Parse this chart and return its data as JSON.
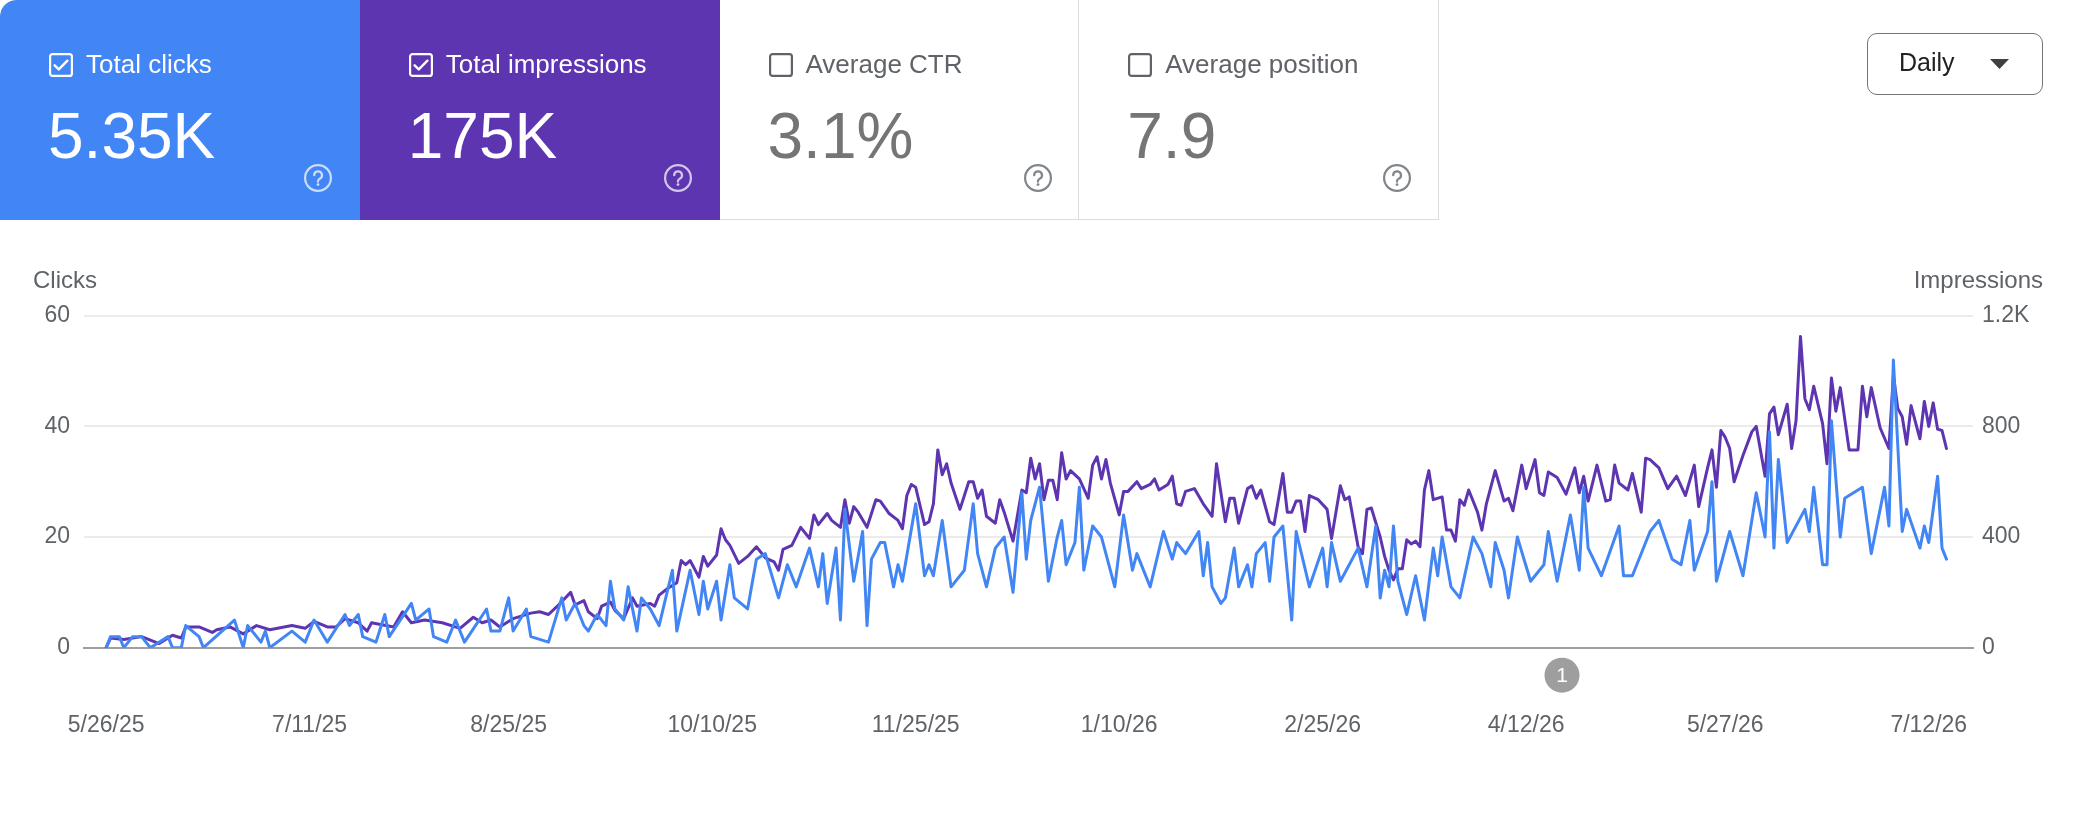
{
  "chart_data": [
    {
      "type": "other",
      "categories": [
        "Total clicks",
        "Total impressions",
        "Average CTR",
        "Average position"
      ],
      "value_labels": [
        "5.35K",
        "175K",
        "3.1%",
        "7.9"
      ],
      "colors": [
        "#4285f4",
        "#5e35b1",
        null,
        null
      ],
      "annotations": [
        "Daily"
      ]
    },
    {
      "type": "line",
      "ylabel": "Clicks",
      "y2label": "Impressions",
      "xlim": [
        "2025-05-21",
        "2026-07-22"
      ],
      "xticks": [
        {
          "value": "2025-05-26",
          "label": "5/26/25"
        },
        {
          "value": "2025-07-11",
          "label": "7/11/25"
        },
        {
          "value": "2025-08-25",
          "label": "8/25/25"
        },
        {
          "value": "2025-10-10",
          "label": "10/10/25"
        },
        {
          "value": "2025-11-25",
          "label": "11/25/25"
        },
        {
          "value": "2026-01-10",
          "label": "1/10/26"
        },
        {
          "value": "2026-02-25",
          "label": "2/25/26"
        },
        {
          "value": "2026-04-12",
          "label": "4/12/26"
        },
        {
          "value": "2026-05-27",
          "label": "5/27/26"
        },
        {
          "value": "2026-07-12",
          "label": "7/12/26"
        }
      ],
      "ylim": [
        0,
        60
      ],
      "yticks": [
        0,
        20,
        40,
        60
      ],
      "y2lim": [
        0,
        1200
      ],
      "y2ticks": [
        0,
        400,
        800,
        {
          "value": 1200,
          "label": "1.2K"
        }
      ],
      "grid": "y",
      "annotations": [
        "1"
      ],
      "series": [
        {
          "color": "#4285f4",
          "x": [
            "2025-05-26",
            "2025-05-27",
            "2025-05-29",
            "2025-05-30",
            "2025-06-01",
            "2025-06-03",
            "2025-06-05",
            "2025-06-09",
            "2025-06-10",
            "2025-06-12",
            "2025-06-13",
            "2025-06-16",
            "2025-06-17",
            "2025-06-24",
            "2025-06-26",
            "2025-06-27",
            "2025-06-30",
            "2025-07-01",
            "2025-07-02",
            "2025-07-07",
            "2025-07-10",
            "2025-07-12",
            "2025-07-15",
            "2025-07-19",
            "2025-07-20",
            "2025-07-22",
            "2025-07-23",
            "2025-07-26",
            "2025-07-28",
            "2025-07-29",
            "2025-08-03",
            "2025-08-04",
            "2025-08-07",
            "2025-08-08",
            "2025-08-11",
            "2025-08-13",
            "2025-08-15",
            "2025-08-20",
            "2025-08-21",
            "2025-08-23",
            "2025-08-25",
            "2025-08-26",
            "2025-08-29",
            "2025-08-30",
            "2025-09-03",
            "2025-09-06",
            "2025-09-07",
            "2025-09-09",
            "2025-09-11",
            "2025-09-12",
            "2025-09-14",
            "2025-09-16",
            "2025-09-17",
            "2025-09-18",
            "2025-09-20",
            "2025-09-21",
            "2025-09-23",
            "2025-09-24",
            "2025-09-26",
            "2025-09-28",
            "2025-10-01",
            "2025-10-02",
            "2025-10-05",
            "2025-10-07",
            "2025-10-08",
            "2025-10-09",
            "2025-10-11",
            "2025-10-12",
            "2025-10-14",
            "2025-10-15",
            "2025-10-18",
            "2025-10-20",
            "2025-10-22",
            "2025-10-25",
            "2025-10-27",
            "2025-10-29",
            "2025-11-01",
            "2025-11-03",
            "2025-11-04",
            "2025-11-05",
            "2025-11-07",
            "2025-11-08",
            "2025-11-09",
            "2025-11-11",
            "2025-11-13",
            "2025-11-14",
            "2025-11-15",
            "2025-11-17",
            "2025-11-18",
            "2025-11-20",
            "2025-11-21",
            "2025-11-22",
            "2025-11-25",
            "2025-11-27",
            "2025-11-28",
            "2025-11-29",
            "2025-12-01",
            "2025-12-03",
            "2025-12-06",
            "2025-12-08",
            "2025-12-09",
            "2025-12-11",
            "2025-12-13",
            "2025-12-15",
            "2025-12-17",
            "2025-12-19",
            "2025-12-20",
            "2025-12-21",
            "2025-12-23",
            "2025-12-25",
            "2025-12-27",
            "2025-12-28",
            "2025-12-29",
            "2025-12-31",
            "2026-01-01",
            "2026-01-02",
            "2026-01-04",
            "2026-01-06",
            "2026-01-09",
            "2026-01-11",
            "2026-01-13",
            "2026-01-14",
            "2026-01-17",
            "2026-01-20",
            "2026-01-22",
            "2026-01-23",
            "2026-01-25",
            "2026-01-28",
            "2026-01-29",
            "2026-01-30",
            "2026-01-31",
            "2026-02-02",
            "2026-02-03",
            "2026-02-05",
            "2026-02-06",
            "2026-02-08",
            "2026-02-09",
            "2026-02-10",
            "2026-02-12",
            "2026-02-13",
            "2026-02-14",
            "2026-02-16",
            "2026-02-18",
            "2026-02-19",
            "2026-02-22",
            "2026-02-25",
            "2026-02-26",
            "2026-02-27",
            "2026-03-01",
            "2026-03-05",
            "2026-03-07",
            "2026-03-09",
            "2026-03-10",
            "2026-03-11",
            "2026-03-12",
            "2026-03-13",
            "2026-03-14",
            "2026-03-16",
            "2026-03-18",
            "2026-03-20",
            "2026-03-22",
            "2026-03-23",
            "2026-03-24",
            "2026-03-26",
            "2026-03-28",
            "2026-03-31",
            "2026-04-02",
            "2026-04-04",
            "2026-04-05",
            "2026-04-07",
            "2026-04-08",
            "2026-04-10",
            "2026-04-13",
            "2026-04-16",
            "2026-04-17",
            "2026-04-19",
            "2026-04-22",
            "2026-04-24",
            "2026-04-25",
            "2026-04-26",
            "2026-04-29",
            "2026-05-03",
            "2026-05-04",
            "2026-05-06",
            "2026-05-10",
            "2026-05-12",
            "2026-05-15",
            "2026-05-17",
            "2026-05-19",
            "2026-05-20",
            "2026-05-23",
            "2026-05-24",
            "2026-05-25",
            "2026-05-28",
            "2026-05-31",
            "2026-06-03",
            "2026-06-05",
            "2026-06-06",
            "2026-06-07",
            "2026-06-08",
            "2026-06-10",
            "2026-06-14",
            "2026-06-15",
            "2026-06-16",
            "2026-06-18",
            "2026-06-19",
            "2026-06-20",
            "2026-06-22",
            "2026-06-23",
            "2026-06-27",
            "2026-06-29",
            "2026-07-02",
            "2026-07-03",
            "2026-07-04",
            "2026-07-06",
            "2026-07-07",
            "2026-07-10",
            "2026-07-11",
            "2026-07-12",
            "2026-07-14",
            "2026-07-15",
            "2026-07-16"
          ],
          "values": [
            0,
            2,
            2,
            0,
            2,
            2,
            0,
            2,
            0,
            0,
            4,
            2,
            0,
            5,
            0,
            4,
            1,
            3,
            0,
            3,
            1,
            5,
            1,
            6,
            4,
            6,
            2,
            1,
            6,
            2,
            8,
            5,
            7,
            2,
            1,
            5,
            1,
            7,
            3,
            3,
            9,
            3,
            7,
            2,
            1,
            9,
            5,
            8,
            4,
            3,
            6,
            4,
            12,
            7,
            5,
            11,
            3,
            9,
            7,
            4,
            14,
            3,
            14,
            6,
            12,
            7,
            12,
            5,
            15,
            9,
            7,
            16,
            17,
            9,
            15,
            11,
            18,
            11,
            17,
            8,
            18,
            5,
            25,
            12,
            21,
            4,
            16,
            19,
            19,
            11,
            15,
            12,
            26,
            13,
            15,
            13,
            23,
            11,
            14,
            26,
            17,
            11,
            18,
            20,
            10,
            28,
            16,
            23,
            29,
            12,
            20,
            23,
            15,
            19,
            29,
            14,
            22,
            20,
            11,
            24,
            14,
            17,
            11,
            21,
            16,
            19,
            17,
            21,
            13,
            19,
            11,
            8,
            9,
            18,
            11,
            15,
            11,
            17,
            19,
            12,
            20,
            22,
            5,
            21,
            11,
            18,
            11,
            19,
            12,
            18,
            11,
            22,
            9,
            14,
            11,
            22,
            12,
            6,
            13,
            5,
            18,
            13,
            20,
            11,
            9,
            20,
            17,
            11,
            19,
            14,
            9,
            20,
            12,
            15,
            21,
            12,
            24,
            14,
            29,
            18,
            13,
            22,
            13,
            13,
            21,
            23,
            16,
            15,
            23,
            14,
            21,
            30,
            12,
            21,
            13,
            28,
            20,
            39,
            18,
            34,
            19,
            25,
            21,
            29,
            15,
            15,
            41,
            20,
            27,
            29,
            17,
            29,
            22,
            52,
            21,
            25,
            18,
            22,
            19,
            31,
            18,
            16
          ]
        },
        {
          "color": "#5e35b1",
          "axis": "y2",
          "x": [
            "2025-05-26",
            "2025-05-27",
            "2025-05-30",
            "2025-06-03",
            "2025-06-07",
            "2025-06-10",
            "2025-06-12",
            "2025-06-13",
            "2025-06-16",
            "2025-06-19",
            "2025-06-20",
            "2025-06-23",
            "2025-06-26",
            "2025-06-29",
            "2025-07-02",
            "2025-07-07",
            "2025-07-10",
            "2025-07-12",
            "2025-07-15",
            "2025-07-17",
            "2025-07-19",
            "2025-07-22",
            "2025-07-24",
            "2025-07-25",
            "2025-07-30",
            "2025-08-01",
            "2025-08-03",
            "2025-08-06",
            "2025-08-10",
            "2025-08-14",
            "2025-08-17",
            "2025-08-19",
            "2025-08-21",
            "2025-08-23",
            "2025-08-26",
            "2025-08-30",
            "2025-09-01",
            "2025-09-03",
            "2025-09-05",
            "2025-09-08",
            "2025-09-09",
            "2025-09-11",
            "2025-09-12",
            "2025-09-14",
            "2025-09-15",
            "2025-09-17",
            "2025-09-18",
            "2025-09-20",
            "2025-09-22",
            "2025-09-23",
            "2025-09-26",
            "2025-09-27",
            "2025-09-28",
            "2025-09-30",
            "2025-10-02",
            "2025-10-03",
            "2025-10-04",
            "2025-10-05",
            "2025-10-07",
            "2025-10-08",
            "2025-10-09",
            "2025-10-11",
            "2025-10-12",
            "2025-10-13",
            "2025-10-14",
            "2025-10-16",
            "2025-10-18",
            "2025-10-20",
            "2025-10-22",
            "2025-10-24",
            "2025-10-25",
            "2025-10-26",
            "2025-10-28",
            "2025-10-30",
            "2025-11-01",
            "2025-11-02",
            "2025-11-03",
            "2025-11-05",
            "2025-11-06",
            "2025-11-08",
            "2025-11-09",
            "2025-11-10",
            "2025-11-11",
            "2025-11-12",
            "2025-11-14",
            "2025-11-16",
            "2025-11-17",
            "2025-11-19",
            "2025-11-21",
            "2025-11-22",
            "2025-11-23",
            "2025-11-24",
            "2025-11-25",
            "2025-11-27",
            "2025-11-28",
            "2025-11-29",
            "2025-11-30",
            "2025-12-01",
            "2025-12-02",
            "2025-12-03",
            "2025-12-05",
            "2025-12-07",
            "2025-12-08",
            "2025-12-09",
            "2025-12-10",
            "2025-12-11",
            "2025-12-13",
            "2025-12-14",
            "2025-12-15",
            "2025-12-17",
            "2025-12-19",
            "2025-12-20",
            "2025-12-21",
            "2025-12-22",
            "2025-12-23",
            "2025-12-24",
            "2025-12-25",
            "2025-12-26",
            "2025-12-27",
            "2025-12-28",
            "2025-12-29",
            "2025-12-30",
            "2026-01-01",
            "2026-01-03",
            "2026-01-04",
            "2026-01-05",
            "2026-01-06",
            "2026-01-07",
            "2026-01-08",
            "2026-01-10",
            "2026-01-11",
            "2026-01-12",
            "2026-01-14",
            "2026-01-15",
            "2026-01-17",
            "2026-01-18",
            "2026-01-19",
            "2026-01-21",
            "2026-01-22",
            "2026-01-23",
            "2026-01-24",
            "2026-01-25",
            "2026-01-27",
            "2026-01-29",
            "2026-01-31",
            "2026-02-01",
            "2026-02-03",
            "2026-02-04",
            "2026-02-05",
            "2026-02-06",
            "2026-02-08",
            "2026-02-09",
            "2026-02-10",
            "2026-02-11",
            "2026-02-13",
            "2026-02-14",
            "2026-02-16",
            "2026-02-17",
            "2026-02-18",
            "2026-02-19",
            "2026-02-20",
            "2026-02-21",
            "2026-02-22",
            "2026-02-24",
            "2026-02-26",
            "2026-02-27",
            "2026-03-01",
            "2026-03-02",
            "2026-03-03",
            "2026-03-05",
            "2026-03-06",
            "2026-03-07",
            "2026-03-08",
            "2026-03-10",
            "2026-03-11",
            "2026-03-12",
            "2026-03-13",
            "2026-03-14",
            "2026-03-15",
            "2026-03-16",
            "2026-03-17",
            "2026-03-18",
            "2026-03-19",
            "2026-03-20",
            "2026-03-21",
            "2026-03-22",
            "2026-03-24",
            "2026-03-25",
            "2026-03-26",
            "2026-03-27",
            "2026-03-28",
            "2026-03-29",
            "2026-03-30",
            "2026-04-01",
            "2026-04-02",
            "2026-04-03",
            "2026-04-05",
            "2026-04-07",
            "2026-04-08",
            "2026-04-09",
            "2026-04-11",
            "2026-04-12",
            "2026-04-14",
            "2026-04-15",
            "2026-04-16",
            "2026-04-17",
            "2026-04-19",
            "2026-04-21",
            "2026-04-23",
            "2026-04-24",
            "2026-04-25",
            "2026-04-26",
            "2026-04-28",
            "2026-04-30",
            "2026-05-01",
            "2026-05-02",
            "2026-05-03",
            "2026-05-05",
            "2026-05-06",
            "2026-05-08",
            "2026-05-09",
            "2026-05-10",
            "2026-05-12",
            "2026-05-14",
            "2026-05-16",
            "2026-05-18",
            "2026-05-20",
            "2026-05-21",
            "2026-05-23",
            "2026-05-24",
            "2026-05-25",
            "2026-05-26",
            "2026-05-27",
            "2026-05-28",
            "2026-05-29",
            "2026-05-31",
            "2026-06-02",
            "2026-06-03",
            "2026-06-05",
            "2026-06-06",
            "2026-06-07",
            "2026-06-08",
            "2026-06-10",
            "2026-06-11",
            "2026-06-12",
            "2026-06-13",
            "2026-06-14",
            "2026-06-15",
            "2026-06-16",
            "2026-06-18",
            "2026-06-19",
            "2026-06-20",
            "2026-06-21",
            "2026-06-22",
            "2026-06-24",
            "2026-06-26",
            "2026-06-27",
            "2026-06-28",
            "2026-06-29",
            "2026-07-01",
            "2026-07-03",
            "2026-07-04",
            "2026-07-05",
            "2026-07-06",
            "2026-07-07",
            "2026-07-08",
            "2026-07-10",
            "2026-07-11",
            "2026-07-12",
            "2026-07-13",
            "2026-07-14",
            "2026-07-15",
            "2026-07-16"
          ],
          "values": [
            0,
            35,
            30,
            40,
            15,
            45,
            35,
            75,
            75,
            55,
            65,
            75,
            50,
            80,
            65,
            80,
            70,
            95,
            75,
            75,
            105,
            90,
            60,
            90,
            75,
            130,
            90,
            100,
            90,
            70,
            110,
            90,
            100,
            75,
            105,
            125,
            130,
            120,
            150,
            200,
            155,
            170,
            130,
            105,
            150,
            165,
            135,
            105,
            180,
            150,
            160,
            150,
            190,
            215,
            235,
            315,
            300,
            315,
            255,
            330,
            295,
            335,
            430,
            390,
            370,
            305,
            330,
            365,
            325,
            310,
            280,
            355,
            370,
            435,
            395,
            480,
            445,
            485,
            460,
            435,
            535,
            450,
            510,
            490,
            435,
            535,
            530,
            485,
            460,
            430,
            550,
            590,
            580,
            445,
            455,
            520,
            715,
            625,
            665,
            595,
            500,
            600,
            600,
            540,
            570,
            475,
            450,
            535,
            490,
            385,
            570,
            560,
            685,
            610,
            665,
            535,
            605,
            605,
            535,
            705,
            610,
            640,
            610,
            540,
            660,
            690,
            610,
            680,
            595,
            480,
            565,
            565,
            600,
            575,
            590,
            610,
            570,
            590,
            620,
            520,
            515,
            565,
            575,
            520,
            475,
            665,
            455,
            540,
            540,
            450,
            575,
            585,
            540,
            570,
            455,
            445,
            630,
            490,
            490,
            530,
            530,
            420,
            550,
            535,
            500,
            395,
            585,
            535,
            545,
            365,
            340,
            500,
            505,
            400,
            330,
            280,
            245,
            285,
            285,
            390,
            375,
            385,
            365,
            570,
            640,
            535,
            545,
            425,
            425,
            385,
            535,
            515,
            570,
            490,
            425,
            520,
            640,
            530,
            540,
            495,
            660,
            575,
            680,
            560,
            550,
            635,
            615,
            555,
            650,
            560,
            620,
            530,
            660,
            530,
            535,
            660,
            595,
            570,
            630,
            490,
            685,
            680,
            650,
            575,
            620,
            550,
            660,
            510,
            650,
            715,
            580,
            785,
            760,
            720,
            600,
            695,
            780,
            800,
            620,
            845,
            870,
            770,
            880,
            720,
            820,
            1125,
            900,
            860,
            945,
            810,
            665,
            975,
            855,
            940,
            715,
            715,
            945,
            835,
            940,
            795,
            720,
            985,
            865,
            835,
            735,
            875,
            755,
            890,
            800,
            885,
            790,
            785,
            720
          ]
        }
      ]
    }
  ]
}
